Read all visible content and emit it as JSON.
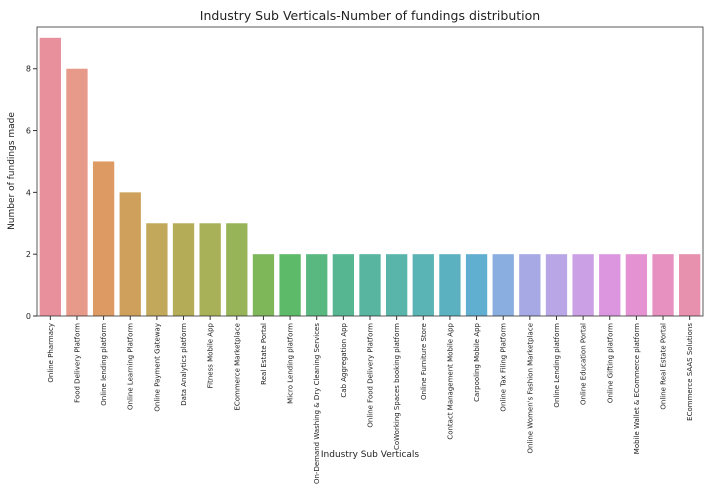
{
  "chart_data": {
    "type": "bar",
    "title": "Industry Sub Verticals-Number of fundings distribution",
    "x_label": "Industry Sub Verticals",
    "y_label": "Number of fundings made",
    "categories": [
      "Online Pharmacy",
      "Food Delivery Platform",
      "Online lending platform",
      "Online Learning Platform",
      "Online Payment Gateway",
      "Data Analytics platform",
      "Fitness Mobile App",
      "ECommerce Marketplace",
      "Real Estate Portal",
      "Micro Lending platform",
      "On-Demand Washing & Dry Cleaning Services",
      "Cab Aggregation App",
      "Online Food Delivery Platform",
      "CoWorking Spaces booking platform",
      "Online Furniture Store",
      "Contact Management Mobile App",
      "Carpooling Mobile App",
      "Online Tax Filing Platform",
      "Online Women's Fashion Marketplace",
      "Online Lending platform",
      "Online Education Portal",
      "Online Gifting platform",
      "Mobile Wallet & ECommerce platform",
      "Online Real Estate Portal",
      "ECommerce SAAS Solutions"
    ],
    "values": [
      9,
      8,
      5,
      4,
      3,
      3,
      3,
      3,
      2,
      2,
      2,
      2,
      2,
      2,
      2,
      2,
      2,
      2,
      2,
      2,
      2,
      2,
      2,
      2,
      2
    ],
    "colors": [
      "#e8909c",
      "#e89a8a",
      "#dd9a62",
      "#cfa05c",
      "#c2a85a",
      "#b5ac58",
      "#a8b058",
      "#98b458",
      "#7db75a",
      "#5dba68",
      "#58b880",
      "#57b692",
      "#58b59f",
      "#59b4aa",
      "#5ab3b5",
      "#5cb1c1",
      "#60aed0",
      "#8aaee0",
      "#a6a9e4",
      "#b8a6e6",
      "#cba0e4",
      "#dc96e0",
      "#e492d2",
      "#e691bf",
      "#e891ae"
    ],
    "ylim": [
      0,
      9.35
    ],
    "yticks": [
      0,
      2,
      4,
      6,
      8
    ],
    "grid": false
  }
}
